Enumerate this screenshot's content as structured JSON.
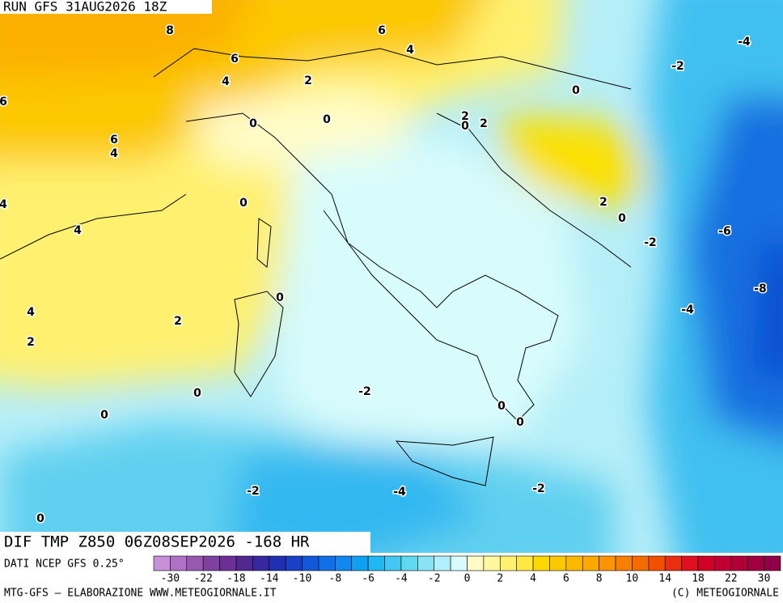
{
  "header": {
    "run": "RUN GFS 31AUG2026 18Z"
  },
  "title": "DIF TMP Z850 06Z08SEP2026 -168 HR",
  "source": "DATI NCEP GFS 0.25°",
  "footer": {
    "left": "MTG-GFS — ELABORAZIONE WWW.METEOGIORNALE.IT",
    "right": "(C) METEOGIORNALE"
  },
  "colorbar": {
    "labels": [
      -30,
      -22,
      -18,
      -14,
      -10,
      -8,
      -6,
      -4,
      -2,
      0,
      2,
      4,
      6,
      8,
      10,
      14,
      18,
      22,
      30
    ],
    "colors": [
      "#c890d8",
      "#b070c8",
      "#9858b0",
      "#8040a0",
      "#6a3098",
      "#502890",
      "#3828a0",
      "#2030b0",
      "#1840c8",
      "#1058d8",
      "#1070e8",
      "#1088f0",
      "#10a0f0",
      "#20b8f0",
      "#40c8f0",
      "#60d8f0",
      "#88e4f4",
      "#b0f0f8",
      "#d8fcfc",
      "#fffcc8",
      "#fff8a0",
      "#fff070",
      "#ffe840",
      "#fcd800",
      "#fcc800",
      "#fcb800",
      "#fca800",
      "#fc9400",
      "#f88000",
      "#f46c00",
      "#f05000",
      "#e83010",
      "#e01020",
      "#d00028",
      "#c00030",
      "#b00038",
      "#a00040",
      "#900048"
    ]
  },
  "contours": {
    "labels": [
      8,
      6,
      4,
      6,
      4,
      2,
      -4,
      -2,
      0,
      6,
      0,
      0,
      2,
      0,
      2,
      6,
      4,
      4,
      0,
      2,
      0,
      -6,
      -2,
      4,
      0,
      -8,
      -4,
      4,
      2,
      2,
      0,
      -2,
      0,
      0,
      0,
      -2,
      -4,
      -2,
      0
    ]
  }
}
